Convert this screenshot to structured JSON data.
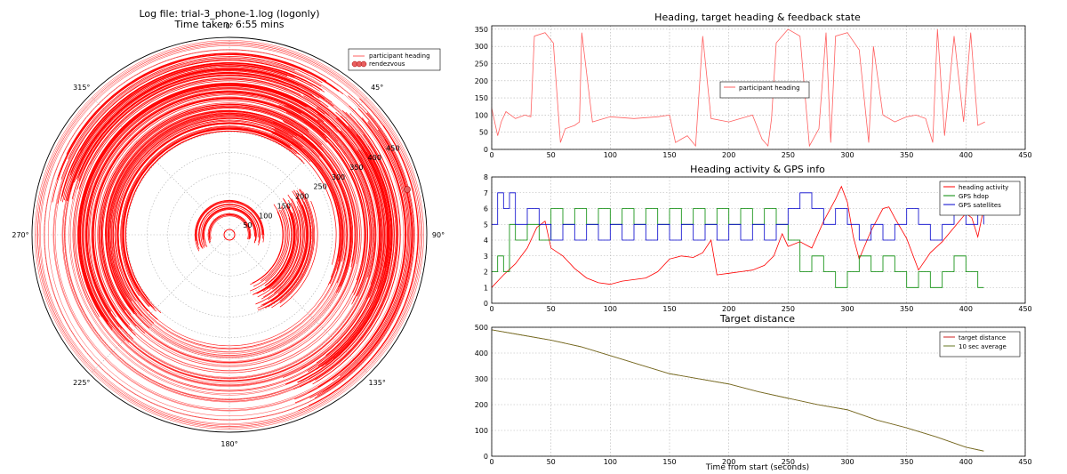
{
  "polar": {
    "title_line1": "Log file: trial-3_phone-1.log (logonly)",
    "title_line2": "Time taken: 6:55 mins",
    "angle_labels": [
      "0°",
      "45°",
      "90°",
      "135°",
      "180°",
      "225°",
      "270°",
      "315°"
    ],
    "radial_labels": [
      "50",
      "100",
      "150",
      "200",
      "250",
      "300",
      "350",
      "400",
      "450"
    ],
    "legend": [
      "participant heading",
      "rendezvous"
    ],
    "colors": {
      "heading": "#ff0000",
      "rendezvous": "#e86060"
    }
  },
  "chart_data": [
    {
      "type": "line",
      "title": "Heading, target heading & feedback state",
      "xlim": [
        0,
        450
      ],
      "ylim": [
        0,
        360
      ],
      "xticks": [
        "0",
        "50",
        "100",
        "150",
        "200",
        "250",
        "300",
        "350",
        "400",
        "450"
      ],
      "yticks": [
        "0",
        "50",
        "100",
        "150",
        "200",
        "250",
        "300",
        "350"
      ],
      "legend": {
        "placement": "center",
        "entries": [
          "participant heading"
        ]
      },
      "grid": true,
      "series": [
        {
          "name": "participant heading",
          "color": "#ff6060",
          "x": [
            0,
            5,
            8,
            12,
            20,
            28,
            33,
            36,
            45,
            52,
            58,
            62,
            70,
            74,
            76,
            85,
            100,
            120,
            140,
            150,
            155,
            160,
            165,
            172,
            178,
            185,
            200,
            210,
            220,
            228,
            233,
            236,
            240,
            250,
            260,
            268,
            276,
            282,
            286,
            290,
            300,
            310,
            318,
            322,
            330,
            340,
            350,
            358,
            366,
            372,
            376,
            382,
            390,
            398,
            404,
            410,
            416
          ],
          "y": [
            120,
            40,
            80,
            110,
            90,
            100,
            95,
            330,
            340,
            310,
            20,
            60,
            70,
            80,
            340,
            80,
            95,
            90,
            95,
            100,
            20,
            30,
            40,
            10,
            330,
            90,
            80,
            90,
            100,
            30,
            10,
            90,
            310,
            350,
            330,
            10,
            60,
            340,
            20,
            330,
            340,
            290,
            20,
            300,
            100,
            80,
            95,
            100,
            90,
            20,
            350,
            40,
            330,
            80,
            340,
            70,
            80
          ]
        }
      ]
    },
    {
      "type": "line",
      "title": "Heading activity & GPS info",
      "xlim": [
        0,
        450
      ],
      "ylim": [
        0,
        8
      ],
      "xticks": [
        "0",
        "50",
        "100",
        "150",
        "200",
        "250",
        "300",
        "350",
        "400",
        "450"
      ],
      "yticks": [
        "0",
        "1",
        "2",
        "3",
        "4",
        "5",
        "6",
        "7",
        "8"
      ],
      "legend": {
        "placement": "top-right",
        "entries": [
          "heading activity",
          "GPS hdop",
          "GPS satellites"
        ]
      },
      "grid": true,
      "series": [
        {
          "name": "heading activity",
          "color": "#ff0000",
          "x": [
            0,
            10,
            20,
            30,
            38,
            45,
            50,
            60,
            70,
            80,
            90,
            100,
            110,
            120,
            130,
            140,
            150,
            160,
            170,
            178,
            185,
            190,
            200,
            210,
            220,
            230,
            238,
            245,
            250,
            260,
            270,
            280,
            290,
            295,
            300,
            305,
            310,
            320,
            330,
            335,
            340,
            350,
            360,
            370,
            380,
            390,
            400,
            405,
            410,
            415
          ],
          "y": [
            1,
            1.8,
            2.5,
            3.5,
            4.8,
            5.2,
            3.5,
            3.0,
            2.2,
            1.6,
            1.3,
            1.2,
            1.4,
            1.5,
            1.6,
            2.0,
            2.8,
            3.0,
            2.9,
            3.2,
            4.0,
            1.8,
            1.9,
            2.0,
            2.1,
            2.4,
            3.0,
            4.4,
            3.6,
            3.9,
            3.5,
            5.2,
            6.6,
            7.4,
            6.4,
            4.2,
            2.8,
            4.6,
            6.0,
            6.1,
            5.4,
            4.1,
            2.1,
            3.2,
            3.9,
            4.8,
            5.7,
            5.4,
            4.2,
            6.0
          ]
        },
        {
          "name": "GPS hdop",
          "color": "#008800",
          "x": [
            0,
            5,
            10,
            15,
            20,
            30,
            40,
            50,
            60,
            70,
            80,
            90,
            100,
            110,
            120,
            130,
            140,
            150,
            160,
            170,
            180,
            190,
            200,
            210,
            220,
            230,
            240,
            250,
            260,
            270,
            280,
            290,
            300,
            310,
            320,
            330,
            340,
            350,
            360,
            370,
            380,
            390,
            400,
            410,
            415
          ],
          "y": [
            2,
            3,
            2,
            5,
            4,
            5,
            4,
            6,
            5,
            6,
            5,
            6,
            5,
            6,
            5,
            6,
            5,
            6,
            5,
            6,
            5,
            6,
            5,
            6,
            5,
            6,
            5,
            4,
            2,
            3,
            2,
            1,
            2,
            3,
            2,
            3,
            2,
            1,
            2,
            1,
            2,
            3,
            2,
            1,
            1
          ]
        },
        {
          "name": "GPS satellites",
          "color": "#0000cc",
          "x": [
            0,
            5,
            10,
            15,
            20,
            30,
            40,
            50,
            60,
            70,
            80,
            90,
            100,
            110,
            120,
            130,
            140,
            150,
            160,
            170,
            180,
            190,
            200,
            210,
            220,
            230,
            240,
            250,
            260,
            270,
            280,
            290,
            300,
            310,
            320,
            330,
            340,
            350,
            360,
            370,
            380,
            390,
            400,
            410,
            415
          ],
          "y": [
            5,
            7,
            6,
            7,
            5,
            6,
            5,
            4,
            5,
            4,
            5,
            4,
            5,
            4,
            5,
            4,
            5,
            4,
            5,
            4,
            5,
            4,
            5,
            4,
            5,
            4,
            5,
            6,
            7,
            6,
            5,
            6,
            5,
            4,
            5,
            4,
            5,
            6,
            5,
            4,
            5,
            6,
            5,
            6,
            5
          ]
        }
      ]
    },
    {
      "type": "line",
      "title": "Target distance",
      "xlabel": "Time from start (seconds)",
      "xlim": [
        0,
        450
      ],
      "ylim": [
        0,
        500
      ],
      "xticks": [
        "0",
        "50",
        "100",
        "150",
        "200",
        "250",
        "300",
        "350",
        "400",
        "450"
      ],
      "yticks": [
        "0",
        "100",
        "200",
        "300",
        "400",
        "500"
      ],
      "legend": {
        "placement": "top-right",
        "entries": [
          "target distance",
          "10 sec average"
        ]
      },
      "grid": true,
      "series": [
        {
          "name": "target distance",
          "color": "#cc2222",
          "x": [
            0,
            25,
            50,
            75,
            100,
            125,
            150,
            175,
            200,
            225,
            250,
            275,
            300,
            325,
            350,
            375,
            400,
            415
          ],
          "y": [
            490,
            470,
            450,
            425,
            390,
            355,
            320,
            300,
            280,
            250,
            225,
            200,
            180,
            140,
            110,
            75,
            35,
            20
          ]
        },
        {
          "name": "10 sec average",
          "color": "#667722",
          "x": [
            0,
            25,
            50,
            75,
            100,
            125,
            150,
            175,
            200,
            225,
            250,
            275,
            300,
            325,
            350,
            375,
            400,
            415
          ],
          "y": [
            490,
            470,
            450,
            425,
            390,
            355,
            320,
            300,
            280,
            250,
            225,
            200,
            180,
            140,
            110,
            75,
            35,
            20
          ]
        }
      ]
    }
  ]
}
